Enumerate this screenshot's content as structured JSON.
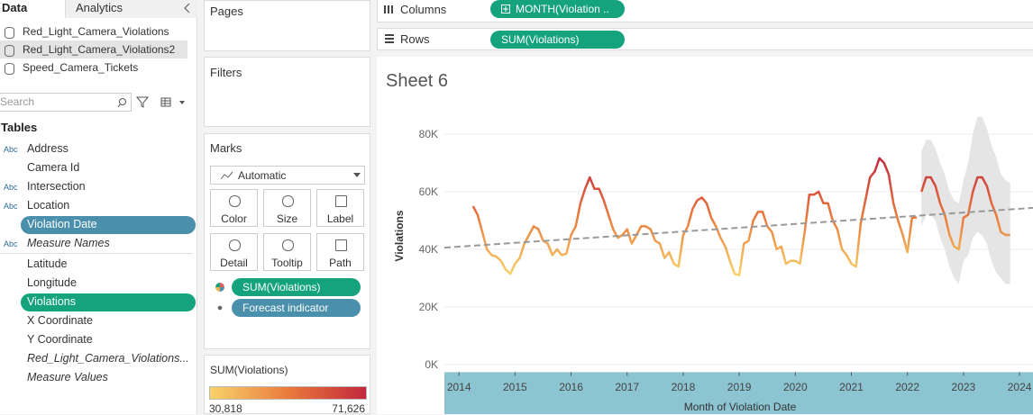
{
  "sidebar": {
    "tabs": [
      "Data",
      "Analytics"
    ],
    "data_sources": [
      "Red_Light_Camera_Violations",
      "Red_Light_Camera_Violations2",
      "Speed_Camera_Tickets"
    ],
    "search": "Search",
    "tables_heading": "Tables",
    "fields": [
      {
        "name": "Address",
        "icon": "Abc"
      },
      {
        "name": "Camera Id",
        "kind": "number"
      },
      {
        "name": "Intersection",
        "icon": "Abc"
      },
      {
        "name": "Location",
        "icon": "Abc"
      },
      {
        "name": "Violation Date",
        "kind": "date",
        "selected": "dimension"
      },
      {
        "name": "Measure Names",
        "icon": "Abc",
        "italic": true
      },
      {
        "name": "Latitude",
        "kind": "geo"
      },
      {
        "name": "Longitude",
        "kind": "geo"
      },
      {
        "name": "Violations",
        "kind": "number",
        "selected": "measure"
      },
      {
        "name": "X Coordinate",
        "kind": "number"
      },
      {
        "name": "Y Coordinate",
        "kind": "number"
      },
      {
        "name": "Red_Light_Camera_Violations...",
        "kind": "number",
        "italic": true
      },
      {
        "name": "Measure Values",
        "kind": "number",
        "italic": true
      }
    ]
  },
  "shelves": {
    "pages": "Pages",
    "filters": "Filters",
    "marks": "Marks",
    "mark_type": "Automatic",
    "mark_buttons": [
      "Color",
      "Size",
      "Label",
      "Detail",
      "Tooltip",
      "Path"
    ],
    "mark_pills": [
      "SUM(Violations)",
      "Forecast indicator"
    ],
    "columns_label": "Columns",
    "columns_pill": "MONTH(Violation ..",
    "rows_label": "Rows",
    "rows_pill": "SUM(Violations)"
  },
  "legend": {
    "title": "SUM(Violations)",
    "min": {
      "value": 30818,
      "label": "30,818"
    },
    "max": {
      "value": 71626,
      "label": "71,626"
    },
    "colors": [
      "#f7d36b",
      "#ea7a3c",
      "#c2283d"
    ]
  },
  "chart_data": {
    "type": "line",
    "title": "Sheet 6",
    "y_label": "Violations",
    "x_label": "Month of Violation Date",
    "xlim": [
      2013.74,
      2024.24
    ],
    "ylim": [
      -2000,
      90000
    ],
    "xticks": [
      2014,
      2015,
      2016,
      2017,
      2018,
      2019,
      2020,
      2021,
      2022,
      2023,
      2024
    ],
    "yticks": [
      {
        "value": 0,
        "label": "0K"
      },
      {
        "value": 20000,
        "label": "20K"
      },
      {
        "value": 40000,
        "label": "40K"
      },
      {
        "value": 60000,
        "label": "60K"
      },
      {
        "value": 80000,
        "label": "80K"
      }
    ],
    "grid": true,
    "series": [
      {
        "x": [
          2014.25,
          2014.333,
          2014.417,
          2014.5,
          2014.583,
          2014.667,
          2014.75,
          2014.833,
          2014.917,
          2015,
          2015.083,
          2015.167,
          2015.25,
          2015.333,
          2015.417,
          2015.5,
          2015.583,
          2015.667,
          2015.75,
          2015.833,
          2015.917,
          2016,
          2016.083,
          2016.167,
          2016.25,
          2016.333,
          2016.417,
          2016.5,
          2016.583,
          2016.667,
          2016.75,
          2016.833,
          2016.917,
          2017,
          2017.083,
          2017.167,
          2017.25,
          2017.333,
          2017.417,
          2017.5,
          2017.583,
          2017.667,
          2017.75,
          2017.833,
          2017.917,
          2018,
          2018.083,
          2018.167,
          2018.25,
          2018.333,
          2018.417,
          2018.5,
          2018.583,
          2018.667,
          2018.75,
          2018.833,
          2018.917,
          2019,
          2019.083,
          2019.167,
          2019.25,
          2019.333,
          2019.417,
          2019.5,
          2019.583,
          2019.667,
          2019.75,
          2019.833,
          2019.917,
          2020,
          2020.083,
          2020.167,
          2020.25,
          2020.333,
          2020.417,
          2020.5,
          2020.583,
          2020.667,
          2020.75,
          2020.833,
          2020.917,
          2021,
          2021.083,
          2021.167,
          2021.25,
          2021.333,
          2021.417,
          2021.5,
          2021.583,
          2021.667,
          2021.75,
          2021.833,
          2021.917,
          2022,
          2022.083,
          2022.167
        ],
        "values": [
          55000,
          52000,
          46000,
          40000,
          38000,
          37500,
          36000,
          33000,
          31500,
          35000,
          37000,
          42000,
          45000,
          48000,
          47000,
          43000,
          42000,
          38000,
          40000,
          38000,
          38500,
          45000,
          48000,
          56000,
          61000,
          65000,
          61000,
          61000,
          57000,
          52000,
          47000,
          44000,
          45000,
          47000,
          42000,
          45000,
          48000,
          48000,
          47000,
          43000,
          42000,
          37000,
          39000,
          35000,
          34000,
          45000,
          48000,
          54000,
          57000,
          58000,
          56000,
          51000,
          48000,
          44000,
          41000,
          36000,
          31500,
          31000,
          42000,
          43000,
          50000,
          53000,
          53000,
          48000,
          46000,
          40000,
          41000,
          35000,
          36000,
          36000,
          35000,
          46000,
          59000,
          59000,
          60000,
          56000,
          56000,
          50000,
          47000,
          40000,
          38000,
          35000,
          34000,
          49000,
          57000,
          65000,
          67000,
          71626,
          70000,
          66000,
          56000,
          50000,
          45000,
          39000,
          51000,
          51000
        ]
      },
      {
        "x": [
          2022.25,
          2022.333,
          2022.417,
          2022.5,
          2022.583,
          2022.667,
          2022.75,
          2022.833,
          2022.917,
          2023,
          2023.083,
          2023.167,
          2023.25,
          2023.333,
          2023.417,
          2023.5,
          2023.583,
          2023.667,
          2023.75,
          2023.833
        ],
        "values": [
          60000,
          65000,
          65000,
          62000,
          56000,
          52000,
          45000,
          41000,
          40000,
          51000,
          52000,
          60000,
          65000,
          65000,
          62000,
          56000,
          52000,
          46000,
          45000,
          45000
        ],
        "upper": [
          74000,
          78000,
          78000,
          75000,
          70000,
          66000,
          60000,
          57000,
          56000,
          64000,
          70000,
          80000,
          86000,
          86000,
          82000,
          76000,
          72000,
          66000,
          64000,
          63000
        ],
        "lower": [
          48000,
          52000,
          52000,
          50000,
          44000,
          40000,
          34000,
          30000,
          28000,
          36000,
          38000,
          44000,
          46000,
          45000,
          42000,
          36000,
          32000,
          30000,
          28000,
          28000
        ]
      }
    ],
    "trend": {
      "x": [
        2013.74,
        2024.24
      ],
      "values": [
        40600,
        54400
      ],
      "color": "#9a9a9a"
    },
    "band_color": "#e5e5e5"
  }
}
